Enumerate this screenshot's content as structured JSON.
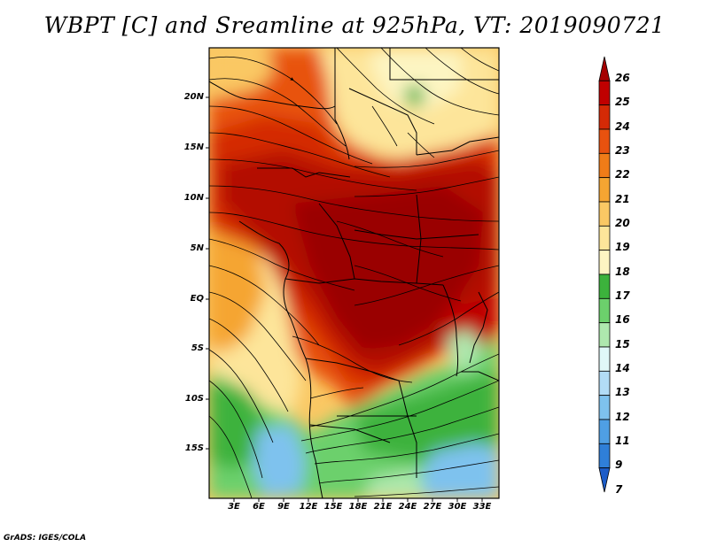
{
  "title": "WBPT [C] and Sreamline at 925hPa, VT: 2019090721",
  "credit": "GrADS: IGES/COLA",
  "lat_labels": [
    "20N",
    "15N",
    "10N",
    "5N",
    "EQ",
    "5S",
    "10S",
    "15S"
  ],
  "lon_labels": [
    "3E",
    "6E",
    "9E",
    "12E",
    "15E",
    "18E",
    "21E",
    "24E",
    "27E",
    "30E",
    "33E"
  ],
  "colorbar": {
    "labels": [
      "26",
      "25",
      "24",
      "23",
      "22",
      "21",
      "20",
      "19",
      "18",
      "17",
      "16",
      "15",
      "14",
      "13",
      "12",
      "11",
      "9",
      "7"
    ],
    "colors": [
      "#a50000",
      "#c00000",
      "#d42a06",
      "#e8520f",
      "#f07c18",
      "#f5a532",
      "#fac864",
      "#fde59a",
      "#fdf5c2",
      "#3cb23c",
      "#6cd06c",
      "#aee8ae",
      "#e0f8f8",
      "#b2dcf6",
      "#7ec2ee",
      "#4f9fe4",
      "#2f7fd8",
      "#1c5cc8"
    ]
  }
}
